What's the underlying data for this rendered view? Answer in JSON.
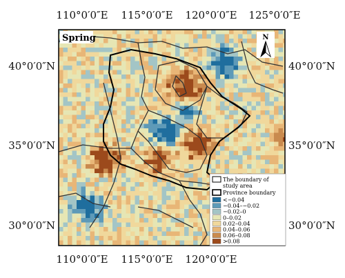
{
  "map": {
    "season_label": "Spring",
    "north_label": "N",
    "lon_ticks_top": [
      "110°0′0″E",
      "115°0′0″E",
      "120°0′0″E",
      "125°0′0″E"
    ],
    "lon_ticks_bottom": [
      "110°0′0″E",
      "115°0′0″E",
      "120°0′0″E"
    ],
    "lat_ticks_left": [
      "40°0′0″N",
      "35°0′0″N",
      "30°0′0″N"
    ],
    "lat_ticks_right": [
      "40°0′0″N",
      "35°0′0″N",
      "30°0′0″N"
    ]
  },
  "legend": {
    "boundary_study_area_line1": "The boundary of",
    "boundary_study_area_line2": "study area",
    "province_boundary": "Province boundary",
    "classes": [
      {
        "label": "<−0.04",
        "color": "#1f6e9e"
      },
      {
        "label": "−0.04–−0.02",
        "color": "#5e9ab8"
      },
      {
        "label": "−0.02–0",
        "color": "#a3c5c6"
      },
      {
        "label": "0–0.02",
        "color": "#e6e6b4"
      },
      {
        "label": "0.02–0.04",
        "color": "#f0d89c"
      },
      {
        "label": "0.04–0.06",
        "color": "#e8b677"
      },
      {
        "label": "0.06–0.08",
        "color": "#c98a4e"
      },
      {
        "label": ">0.08",
        "color": "#9c4a1c"
      }
    ]
  }
}
